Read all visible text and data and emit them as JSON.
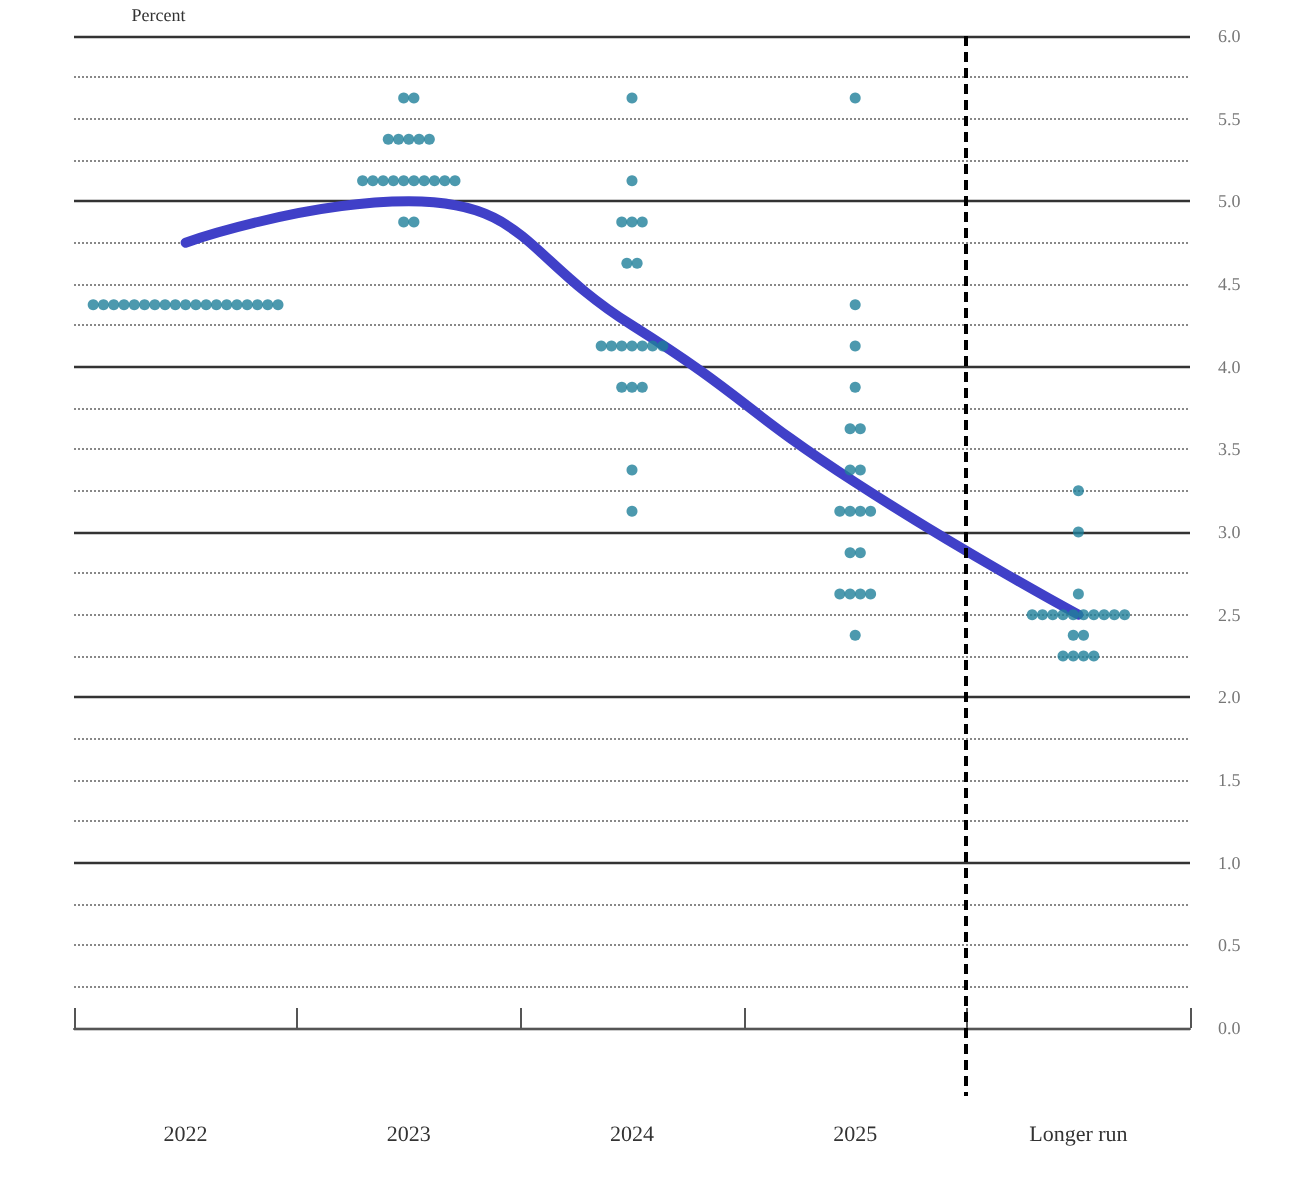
{
  "chart_data": {
    "type": "scatter",
    "ylabel": "Percent",
    "marker": "circle",
    "categories": [
      "2022",
      "2023",
      "2024",
      "2025",
      "Longer run"
    ],
    "series": [
      {
        "color": "#1f7f9a",
        "values": [
          4.375,
          5.625,
          5.625,
          5.625,
          3.25
        ]
      },
      {
        "color": "#1f7f9a",
        "values": [
          4.375,
          5.625,
          5.125,
          4.375,
          3
        ]
      },
      {
        "color": "#1f7f9a",
        "values": [
          4.375,
          5.375,
          4.875,
          4.125,
          2.625
        ]
      },
      {
        "color": "#1f7f9a",
        "values": [
          4.375,
          5.375,
          4.875,
          3.875,
          2.5
        ]
      },
      {
        "color": "#1f7f9a",
        "values": [
          4.375,
          5.375,
          4.875,
          3.625,
          2.5
        ]
      },
      {
        "color": "#1f7f9a",
        "values": [
          4.375,
          5.375,
          4.625,
          3.625,
          2.5
        ]
      },
      {
        "color": "#1f7f9a",
        "values": [
          4.375,
          5.375,
          4.625,
          3.375,
          2.5
        ]
      },
      {
        "color": "#1f7f9a",
        "values": [
          4.375,
          5.125,
          4.125,
          3.375,
          2.5
        ]
      },
      {
        "color": "#1f7f9a",
        "values": [
          4.375,
          5.125,
          4.125,
          3.125,
          2.5
        ]
      },
      {
        "color": "#1f7f9a",
        "values": [
          4.375,
          5.125,
          4.125,
          3.125,
          2.5
        ]
      },
      {
        "color": "#1f7f9a",
        "values": [
          4.375,
          5.125,
          4.125,
          3.125,
          2.5
        ]
      },
      {
        "color": "#1f7f9a",
        "values": [
          4.375,
          5.125,
          4.125,
          3.125,
          2.5
        ]
      },
      {
        "color": "#1f7f9a",
        "values": [
          4.375,
          5.125,
          4.125,
          2.875,
          2.5
        ]
      },
      {
        "color": "#1f7f9a",
        "values": [
          4.375,
          5.125,
          4.125,
          2.875,
          2.375
        ]
      },
      {
        "color": "#1f7f9a",
        "values": [
          4.375,
          5.125,
          3.875,
          2.625,
          2.375
        ]
      },
      {
        "color": "#1f7f9a",
        "values": [
          4.375,
          5.125,
          3.875,
          2.625,
          2.25
        ]
      },
      {
        "color": "#1f7f9a",
        "values": [
          4.375,
          5.125,
          3.875,
          2.625,
          2.25
        ]
      },
      {
        "color": "#1f7f9a",
        "values": [
          4.375,
          4.875,
          3.375,
          2.625,
          2.25
        ]
      },
      {
        "color": "#1f7f9a",
        "values": [
          4.375,
          4.875,
          3.125,
          2.375,
          2.25
        ]
      },
      {
        "type": "line",
        "color": "#4040c8",
        "marker": "none",
        "line_style": "solid",
        "values": [
          4.75,
          5.0,
          4.25,
          3.3,
          2.5
        ]
      }
    ],
    "ylim": [
      0,
      6
    ],
    "yticks": [
      {
        "value": 0,
        "label": "0.0"
      },
      {
        "value": 0.25,
        "label": null
      },
      {
        "value": 0.5,
        "label": "0.5"
      },
      {
        "value": 0.75,
        "label": null
      },
      {
        "value": 1,
        "label": "1.0"
      },
      {
        "value": 1.25,
        "label": null
      },
      {
        "value": 1.5,
        "label": "1.5"
      },
      {
        "value": 1.75,
        "label": null
      },
      {
        "value": 2,
        "label": "2.0"
      },
      {
        "value": 2.25,
        "label": null
      },
      {
        "value": 2.5,
        "label": "2.5"
      },
      {
        "value": 2.75,
        "label": null
      },
      {
        "value": 3,
        "label": "3.0"
      },
      {
        "value": 3.25,
        "label": null
      },
      {
        "value": 3.5,
        "label": "3.5"
      },
      {
        "value": 3.75,
        "label": null
      },
      {
        "value": 4,
        "label": "4.0"
      },
      {
        "value": 4.25,
        "label": null
      },
      {
        "value": 4.5,
        "label": "4.5"
      },
      {
        "value": 4.75,
        "label": null
      },
      {
        "value": 5,
        "label": "5.0"
      },
      {
        "value": 5.25,
        "label": null
      },
      {
        "value": 5.5,
        "label": "5.5"
      },
      {
        "value": 5.75,
        "label": null
      },
      {
        "value": 6,
        "label": "6.0"
      }
    ],
    "grid": "y"
  }
}
